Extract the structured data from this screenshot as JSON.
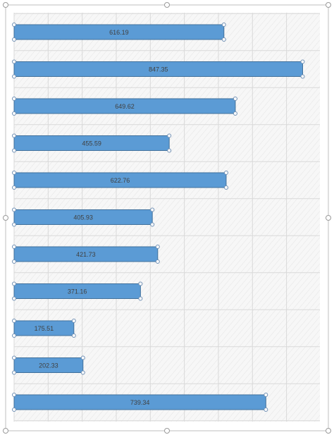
{
  "chart_data": {
    "type": "bar",
    "orientation": "horizontal",
    "values": [
      616.19,
      847.35,
      649.62,
      455.59,
      622.76,
      405.93,
      421.73,
      371.16,
      175.51,
      202.33,
      739.34
    ],
    "data_labels": [
      "616.19",
      "847.35",
      "649.62",
      "455.59",
      "622.76",
      "405.93",
      "421.73",
      "371.16",
      "175.51",
      "202.33",
      "739.34"
    ],
    "xlim": [
      0,
      900
    ],
    "grid": true,
    "legend": "none",
    "title": "",
    "xlabel": "",
    "ylabel": ""
  },
  "colors": {
    "bar_fill": "#5b9bd5",
    "bar_stroke": "#41719c",
    "plot_fill": "#f7f7f7",
    "grid": "#d9d9d9",
    "selection_handle": "#6f8fb3",
    "selection_border": "#bfbfbf",
    "label_text": "#404040"
  },
  "state": {
    "selected": true
  }
}
